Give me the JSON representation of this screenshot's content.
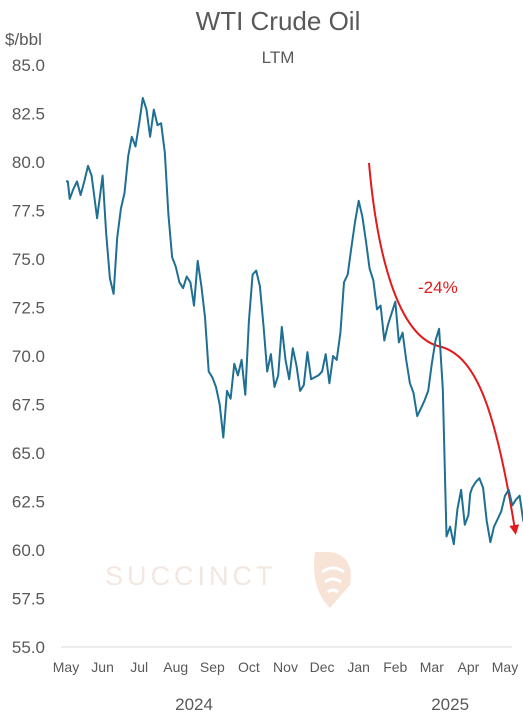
{
  "chart_data": {
    "type": "line",
    "title": "WTI Crude Oil",
    "subtitle": "LTM",
    "ylabel": "$/bbl",
    "ylim": [
      55.0,
      85.0
    ],
    "yticks": [
      "85.0",
      "82.5",
      "80.0",
      "77.5",
      "75.0",
      "72.5",
      "70.0",
      "67.5",
      "65.0",
      "62.5",
      "60.0",
      "57.5",
      "55.0"
    ],
    "months": [
      "May",
      "Jun",
      "Jul",
      "Aug",
      "Sep",
      "Oct",
      "Nov",
      "Dec",
      "Jan",
      "Feb",
      "Mar",
      "Apr",
      "May"
    ],
    "years": [
      {
        "label": "2024",
        "month_index": 3.5
      },
      {
        "label": "2025",
        "month_index": 10.5
      }
    ],
    "grid": false,
    "legend": "none",
    "series": [
      {
        "color": "#1f6f93",
        "x": [
          0.0,
          0.05,
          0.1,
          0.2,
          0.3,
          0.4,
          0.5,
          0.6,
          0.7,
          0.85,
          1.0,
          1.1,
          1.2,
          1.3,
          1.4,
          1.5,
          1.6,
          1.7,
          1.8,
          1.9,
          2.0,
          2.1,
          2.2,
          2.3,
          2.4,
          2.5,
          2.6,
          2.7,
          2.8,
          2.9,
          3.0,
          3.1,
          3.2,
          3.3,
          3.4,
          3.5,
          3.6,
          3.7,
          3.8,
          3.9,
          4.0,
          4.1,
          4.2,
          4.3,
          4.4,
          4.5,
          4.6,
          4.7,
          4.8,
          4.9,
          5.0,
          5.1,
          5.2,
          5.3,
          5.4,
          5.5,
          5.6,
          5.7,
          5.8,
          5.9,
          6.0,
          6.1,
          6.2,
          6.3,
          6.4,
          6.5,
          6.6,
          6.7,
          6.8,
          6.9,
          7.0,
          7.1,
          7.2,
          7.3,
          7.4,
          7.5,
          7.6,
          7.7,
          7.8,
          7.9,
          8.0,
          8.1,
          8.2,
          8.3,
          8.4,
          8.5,
          8.6,
          8.7,
          8.8,
          8.9,
          9.0,
          9.1,
          9.2,
          9.3,
          9.4,
          9.5,
          9.6,
          9.7,
          9.8,
          9.9,
          10.0,
          10.1,
          10.2,
          10.3,
          10.4,
          10.5,
          10.6,
          10.7,
          10.8,
          10.9,
          11.0,
          11.05,
          11.1,
          11.2,
          11.3,
          11.4,
          11.5,
          11.6,
          11.7,
          11.8,
          11.9,
          12.0,
          12.1,
          12.2,
          12.3,
          12.4,
          12.5,
          12.6,
          12.7
        ],
        "values": [
          79.0,
          79.0,
          78.1,
          78.6,
          79.0,
          78.3,
          79.0,
          79.8,
          79.3,
          77.1,
          79.3,
          76.3,
          74.0,
          73.2,
          76.1,
          77.6,
          78.4,
          80.3,
          81.3,
          80.8,
          82.0,
          83.3,
          82.7,
          81.3,
          82.7,
          81.9,
          82.0,
          80.5,
          77.3,
          75.1,
          74.6,
          73.8,
          73.5,
          74.1,
          73.8,
          72.6,
          74.9,
          73.6,
          72.0,
          69.2,
          68.9,
          68.4,
          67.5,
          65.8,
          68.2,
          67.8,
          69.6,
          69.0,
          69.8,
          68.0,
          71.8,
          74.2,
          74.4,
          73.6,
          71.5,
          69.2,
          70.1,
          68.4,
          69.0,
          71.5,
          69.8,
          68.8,
          70.4,
          69.5,
          68.2,
          68.5,
          70.2,
          68.8,
          68.9,
          69.0,
          69.2,
          70.1,
          68.6,
          70.0,
          69.8,
          71.2,
          73.8,
          74.2,
          75.6,
          76.9,
          78.0,
          77.2,
          75.9,
          74.5,
          73.9,
          72.4,
          72.6,
          70.8,
          71.6,
          72.2,
          72.8,
          70.7,
          71.2,
          69.8,
          68.6,
          68.1,
          66.9,
          67.3,
          67.7,
          68.2,
          69.6,
          70.8,
          71.4,
          68.3,
          60.7,
          61.2,
          60.3,
          62.1,
          63.1,
          61.3,
          61.8,
          62.9,
          63.2,
          63.5,
          63.7,
          63.2,
          61.5,
          60.4,
          61.2,
          61.6,
          62.0,
          62.8,
          63.1,
          62.3,
          62.6,
          62.8,
          61.5,
          61.9,
          61.3
        ]
      }
    ],
    "annotations": [
      {
        "text": "-24%",
        "color": "#e31a1c"
      }
    ]
  },
  "watermark": {
    "text": "SUCCINCT",
    "color": "#f3e7e1",
    "icon": "radar-fan-icon"
  }
}
